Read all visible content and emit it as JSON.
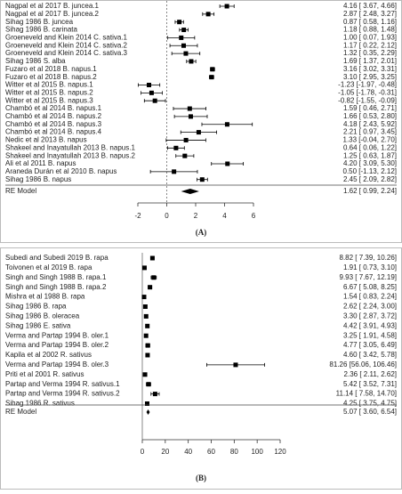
{
  "chart_data": [
    {
      "type": "forest",
      "panel_label": "(A)",
      "categories": [
        "Nagpal et al 2017 B. juncea.1",
        "Nagpal et al 2017 B. juncea.2",
        "Sihag 1986 B. juncea",
        "Sihag 1986 B. carinata",
        "Groeneveld and Klein 2014 C. sativa.1",
        "Groeneveld and Klein 2014 C. sativa.2",
        "Groeneveld and Klein 2014 C. sativa.3",
        "Sihag 1986 S. alba",
        "Fuzaro et al 2018 B. napus.1",
        "Fuzaro et al 2018 B. napus.2",
        "Witter et al 2015 B. napus.1",
        "Witter et al 2015 B. napus.2",
        "Witter et al 2015 B. napus.3",
        "Chambó et al 2014 B. napus.1",
        "Chambó et al 2014 B. napus.2",
        "Chambó et al 2014 B. napus.3",
        "Chambó et al 2014 B. napus.4",
        "Nedic et al 2013 B. napus",
        "Shakeel and Inayatullah 2013 B. napus.1",
        "Shakeel and Inayatullah 2013 B. napus.2",
        "Ali et al 2011 B. napus",
        "Araneda Durán et al 2010 B. napus",
        "Sihag 1986 B. napus"
      ],
      "values": [
        4.16,
        2.87,
        0.87,
        1.18,
        1.0,
        1.17,
        1.32,
        1.69,
        3.16,
        3.1,
        -1.23,
        -1.05,
        -0.82,
        1.59,
        1.66,
        4.18,
        2.21,
        1.33,
        0.64,
        1.25,
        4.2,
        0.5,
        2.45
      ],
      "lower": [
        3.67,
        2.48,
        0.58,
        0.88,
        0.07,
        0.22,
        0.35,
        1.37,
        3.02,
        2.95,
        -1.97,
        -1.78,
        -1.55,
        0.46,
        0.53,
        2.43,
        0.97,
        -0.04,
        0.06,
        0.63,
        3.09,
        -1.13,
        2.09
      ],
      "upper": [
        4.66,
        3.27,
        1.16,
        1.48,
        1.93,
        2.12,
        2.29,
        2.01,
        3.31,
        3.25,
        -0.48,
        -0.31,
        -0.09,
        2.71,
        2.8,
        5.92,
        3.45,
        2.7,
        1.22,
        1.87,
        5.3,
        2.12,
        2.82
      ],
      "value_labels": [
        "4.16 [ 3.67, 4.66]",
        "2.87 [ 2.48, 3.27]",
        "0.87 [ 0.58, 1.16]",
        "1.18 [ 0.88, 1.48]",
        "1.00 [ 0.07, 1.93]",
        "1.17 [ 0.22, 2.12]",
        "1.32 [ 0.35, 2.29]",
        "1.69 [ 1.37, 2.01]",
        "3.16 [ 3.02, 3.31]",
        "3.10 [ 2.95, 3.25]",
        "-1.23 [-1.97, -0.48]",
        "-1.05 [-1.78, -0.31]",
        "-0.82 [-1.55, -0.09]",
        "1.59 [ 0.46, 2.71]",
        "1.66 [ 0.53, 2.80]",
        "4.18 [ 2.43, 5.92]",
        "2.21 [ 0.97, 3.45]",
        "1.33 [-0.04, 2.70]",
        "0.64 [ 0.06, 1.22]",
        "1.25 [ 0.63, 1.87]",
        "4.20 [ 3.09, 5.30]",
        "0.50 [-1.13, 2.12]",
        "2.45 [ 2.09, 2.82]"
      ],
      "summary": {
        "name": "RE Model",
        "value": 1.62,
        "lower": 0.99,
        "upper": 2.24,
        "value_label": "1.62 [ 0.99, 2.24]"
      },
      "reference": 0,
      "xlim": [
        -2,
        6
      ],
      "xticks": [
        -2,
        0,
        2,
        4,
        6
      ],
      "color": "#000000"
    },
    {
      "type": "forest",
      "panel_label": "(B)",
      "categories": [
        "Subedi and Subedi 2019 B. rapa",
        "Toivonen et al 2019 B. rapa",
        "Singh and Singh 1988 B. rapa.1",
        "Singh and Singh 1988 B. rapa.2",
        "Mishra et al 1988 B. rapa",
        "Sihag 1986 B. rapa",
        "Sihag 1986 B. oleracea",
        "Sihag 1986 E. sativa",
        "Verma and Partap 1994 B. oler.1",
        "Verma and Partap 1994 B. oler.2",
        "Kapila et al 2002 R. sativus",
        "Verma and Partap 1994 B. oler.3",
        "Priti et al 2001 R. sativus",
        "Partap and Verma 1994 R. sativus.1",
        "Partap and Verma 1994 R. sativus.2",
        "Sihag 1986 R. sativus"
      ],
      "values": [
        8.82,
        1.91,
        9.93,
        6.67,
        1.54,
        2.62,
        3.3,
        4.42,
        3.25,
        4.77,
        4.6,
        81.26,
        2.36,
        5.42,
        11.14,
        4.25
      ],
      "lower": [
        7.39,
        0.73,
        7.67,
        5.08,
        0.83,
        2.24,
        2.87,
        3.91,
        1.91,
        3.05,
        3.42,
        56.06,
        2.11,
        3.52,
        7.58,
        3.75
      ],
      "upper": [
        10.26,
        3.1,
        12.19,
        8.25,
        2.24,
        3.0,
        3.72,
        4.93,
        4.58,
        6.49,
        5.78,
        106.46,
        2.62,
        7.31,
        14.7,
        4.75
      ],
      "value_labels": [
        "8.82 [ 7.39, 10.26]",
        "1.91 [ 0.73, 3.10]",
        "9.93 [ 7.67, 12.19]",
        "6.67 [ 5.08, 8.25]",
        "1.54 [ 0.83, 2.24]",
        "2.62 [ 2.24, 3.00]",
        "3.30 [ 2.87, 3.72]",
        "4.42 [ 3.91, 4.93]",
        "3.25 [ 1.91, 4.58]",
        "4.77 [ 3.05, 6.49]",
        "4.60 [ 3.42, 5.78]",
        "81.26 [56.06, 106.46]",
        "2.36 [ 2.11, 2.62]",
        "5.42 [ 3.52, 7.31]",
        "11.14 [ 7.58, 14.70]",
        "4.25 [ 3.75, 4.75]"
      ],
      "summary": {
        "name": "RE Model",
        "value": 5.07,
        "lower": 3.6,
        "upper": 6.54,
        "value_label": "5.07 [ 3.60, 6.54]"
      },
      "reference": 0,
      "xlim": [
        0,
        120
      ],
      "xticks": [
        0,
        20,
        40,
        60,
        80,
        100,
        120
      ],
      "color": "#000000"
    }
  ]
}
